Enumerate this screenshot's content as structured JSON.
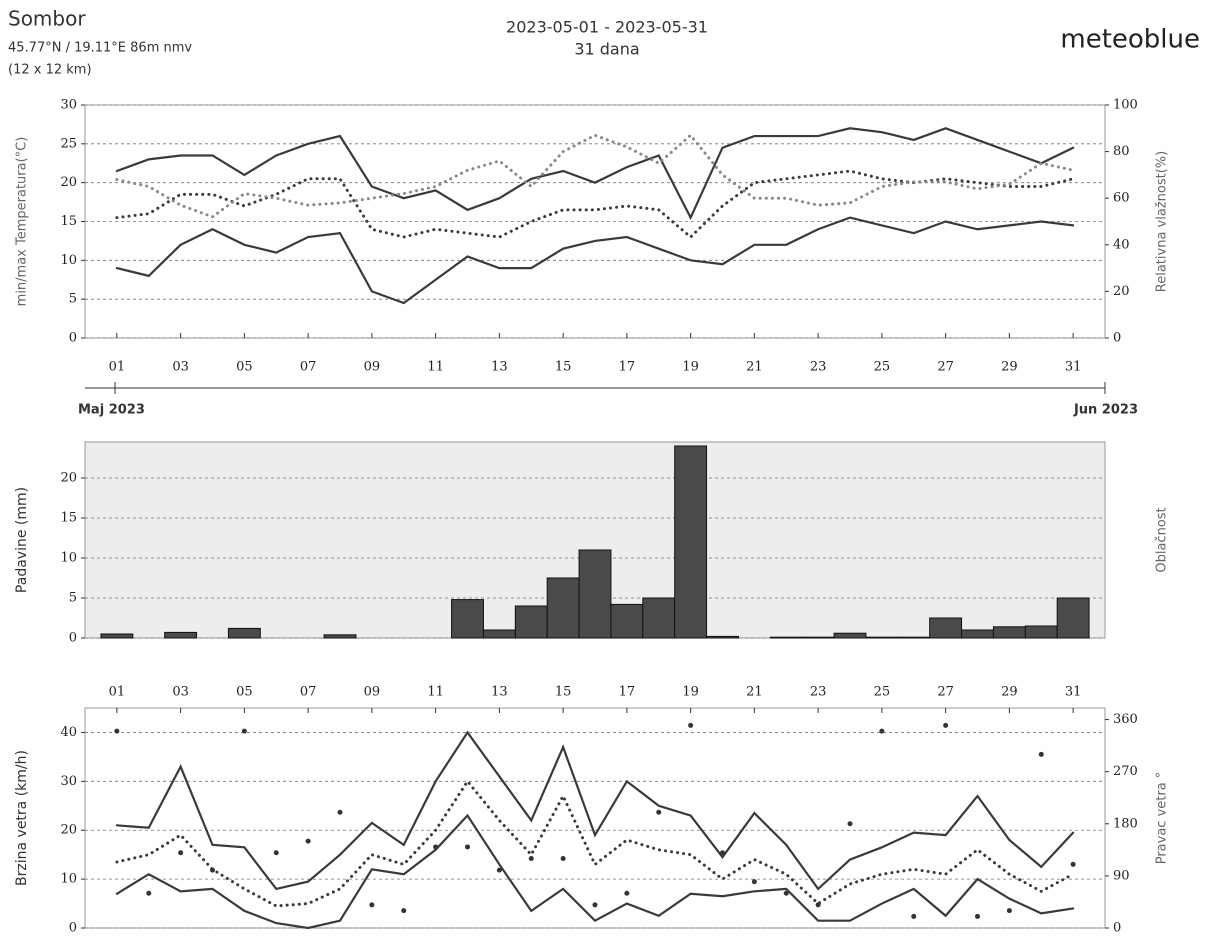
{
  "header": {
    "location": "Sombor",
    "coords": "45.77°N / 19.11°E   86m nmv",
    "resolution": "(12 x 12 km)",
    "period": "2023-05-01 - 2023-05-31",
    "days": "31 dana",
    "brand": "meteoblue"
  },
  "chart_data": [
    {
      "type": "line",
      "ylabel": "min/max Temperatura(°C)",
      "y2label": "Relativna vlažnost(%)",
      "month_labels": [
        "Maj 2023",
        "Jun 2023"
      ],
      "x": [
        1,
        2,
        3,
        4,
        5,
        6,
        7,
        8,
        9,
        10,
        11,
        12,
        13,
        14,
        15,
        16,
        17,
        18,
        19,
        20,
        21,
        22,
        23,
        24,
        25,
        26,
        27,
        28,
        29,
        30,
        31
      ],
      "xlim": [
        0,
        32
      ],
      "xticks": [
        {
          "value": 1,
          "label": "01"
        },
        {
          "value": 3,
          "label": "03"
        },
        {
          "value": 5,
          "label": "05"
        },
        {
          "value": 7,
          "label": "07"
        },
        {
          "value": 9,
          "label": "09"
        },
        11,
        13,
        15,
        17,
        19,
        21,
        23,
        25,
        27,
        29,
        31
      ],
      "ylim": [
        0,
        30
      ],
      "yticks": [
        0,
        5,
        10,
        15,
        20,
        25,
        30
      ],
      "y2lim": [
        0,
        100
      ],
      "y2ticks": [
        0,
        20,
        40,
        60,
        80,
        100
      ],
      "grid": true,
      "series": [
        {
          "name": "max",
          "color": "#3a3a3a",
          "style": "solid",
          "values": [
            21.5,
            23,
            23.5,
            23.5,
            21,
            23.5,
            25,
            26,
            19.5,
            18,
            19,
            16.5,
            18,
            20.5,
            21.5,
            20,
            22,
            23.5,
            15.5,
            24.5,
            26,
            26,
            26,
            27,
            26.5,
            25.5,
            27,
            25.5,
            24,
            22.5,
            24.5
          ]
        },
        {
          "name": "min",
          "color": "#3a3a3a",
          "style": "solid",
          "values": [
            9,
            8,
            12,
            14,
            12,
            11,
            13,
            13.5,
            6,
            4.5,
            7.5,
            10.5,
            9,
            9,
            11.5,
            12.5,
            13,
            11.5,
            10,
            9.5,
            12,
            12,
            14,
            15.5,
            14.5,
            13.5,
            15,
            14,
            14.5,
            15,
            14.5
          ]
        },
        {
          "name": "mean",
          "color": "#3a3a3a",
          "style": "dotted",
          "values": [
            15.5,
            16,
            18.5,
            18.5,
            17,
            18.5,
            20.5,
            20.5,
            14,
            13,
            14,
            13.5,
            13,
            15,
            16.5,
            16.5,
            17,
            16.5,
            13,
            17,
            20,
            20.5,
            21,
            21.5,
            20.5,
            20,
            20.5,
            20,
            19.5,
            19.5,
            20.5
          ]
        },
        {
          "name": "humidity",
          "color": "#888888",
          "style": "dotted",
          "axis": "y2",
          "values": [
            68,
            65,
            57,
            52,
            62,
            60,
            57,
            58,
            60,
            62,
            65,
            72,
            76,
            65,
            80,
            87,
            82,
            75,
            87,
            70,
            60,
            60,
            57,
            58,
            65,
            67,
            67,
            64,
            66,
            75,
            72
          ]
        }
      ]
    },
    {
      "type": "bar",
      "ylabel": "Padavine (mm)",
      "y2label": "Oblačnost",
      "x": [
        1,
        2,
        3,
        4,
        5,
        6,
        7,
        8,
        9,
        10,
        11,
        12,
        13,
        14,
        15,
        16,
        17,
        18,
        19,
        20,
        21,
        22,
        23,
        24,
        25,
        26,
        27,
        28,
        29,
        30,
        31
      ],
      "xlim": [
        0,
        32
      ],
      "ylim": [
        0,
        24.5
      ],
      "yticks": [
        0,
        5,
        10,
        15,
        20
      ],
      "grid": true,
      "color": "#4a4a4a",
      "values": [
        0.5,
        0,
        0.7,
        0,
        1.2,
        0,
        0,
        0.4,
        0,
        0,
        0,
        4.8,
        1,
        4,
        7.5,
        11,
        4.2,
        5,
        24,
        0.2,
        0,
        0.1,
        0.1,
        0.6,
        0.1,
        0.1,
        2.5,
        1,
        1.4,
        1.5,
        5
      ]
    },
    {
      "type": "line",
      "ylabel": "Brzina vetra (km/h)",
      "y2label": "Pravac vetra °",
      "xtick_position": "top",
      "x": [
        1,
        2,
        3,
        4,
        5,
        6,
        7,
        8,
        9,
        10,
        11,
        12,
        13,
        14,
        15,
        16,
        17,
        18,
        19,
        20,
        21,
        22,
        23,
        24,
        25,
        26,
        27,
        28,
        29,
        30,
        31
      ],
      "xlim": [
        0,
        32
      ],
      "xticks": [
        {
          "value": 1,
          "label": "01"
        },
        {
          "value": 3,
          "label": "03"
        },
        {
          "value": 5,
          "label": "05"
        },
        {
          "value": 7,
          "label": "07"
        },
        {
          "value": 9,
          "label": "09"
        },
        11,
        13,
        15,
        17,
        19,
        21,
        23,
        25,
        27,
        29,
        31
      ],
      "ylim": [
        0,
        45
      ],
      "yticks": [
        0,
        10,
        20,
        30,
        40
      ],
      "y2lim": [
        0,
        380
      ],
      "y2ticks": [
        0,
        90,
        180,
        270,
        360
      ],
      "grid": true,
      "series": [
        {
          "name": "max",
          "color": "#3a3a3a",
          "style": "solid",
          "values": [
            21,
            20.5,
            33,
            17,
            16.5,
            8,
            9.5,
            15,
            21.5,
            17,
            30,
            40,
            31,
            22,
            37,
            19,
            30,
            25,
            23,
            14.5,
            23.5,
            17,
            8,
            14,
            16.5,
            19.5,
            19,
            27,
            18,
            12.5,
            19.5
          ]
        },
        {
          "name": "mean",
          "color": "#3a3a3a",
          "style": "dotted",
          "values": [
            13.5,
            15,
            19,
            12,
            8,
            4.5,
            5,
            8,
            15,
            13,
            20,
            30,
            22,
            15,
            27,
            13,
            18,
            16,
            15,
            10,
            14,
            11,
            5,
            9,
            11,
            12,
            11,
            16,
            11,
            7.5,
            11
          ]
        },
        {
          "name": "min",
          "color": "#3a3a3a",
          "style": "solid",
          "values": [
            7,
            11,
            7.5,
            8,
            3.5,
            1,
            0,
            1.5,
            12,
            11,
            16,
            23,
            13,
            3.5,
            8,
            1.5,
            5,
            2.5,
            7,
            6.5,
            7.5,
            8,
            1.5,
            1.5,
            5,
            8,
            2.5,
            10,
            6,
            3,
            4
          ]
        },
        {
          "name": "direction",
          "color": "#333333",
          "style": "points",
          "axis": "y2",
          "values": [
            340,
            60,
            130,
            100,
            340,
            130,
            150,
            200,
            40,
            30,
            140,
            140,
            100,
            120,
            120,
            40,
            60,
            200,
            350,
            130,
            80,
            60,
            40,
            180,
            340,
            20,
            350,
            20,
            30,
            300,
            110
          ]
        }
      ]
    }
  ]
}
